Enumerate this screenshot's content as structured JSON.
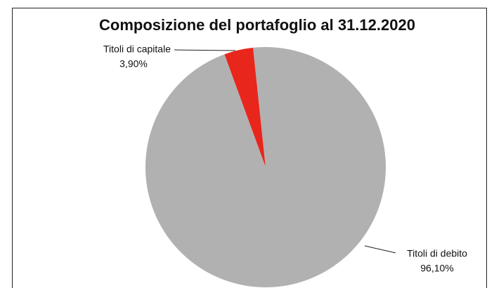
{
  "chart_data": {
    "type": "pie",
    "title": "Composizione del portafoglio al 31.12.2020",
    "categories": [
      "Titoli di capitale",
      "Titoli di debito"
    ],
    "values": [
      3.9,
      96.1
    ],
    "value_labels": [
      "3,90%",
      "96,10%"
    ],
    "colors": [
      "#e8261c",
      "#b1b1b1"
    ]
  }
}
